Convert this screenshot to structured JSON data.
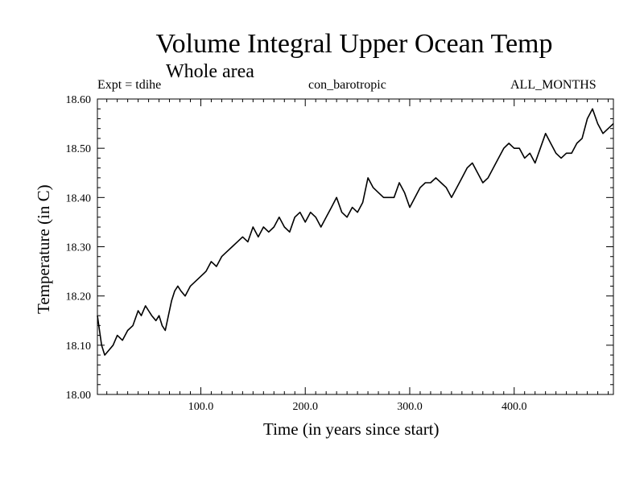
{
  "chart_data": {
    "type": "line",
    "title": "Volume Integral Upper Ocean Temp",
    "subtitle": "Whole area",
    "header_left": "Expt = tdihe",
    "header_center": "con_barotropic",
    "header_right": "ALL_MONTHS",
    "xlabel": "Time (in years since start)",
    "ylabel": "Temperature (in C)",
    "xlim": [
      1,
      495
    ],
    "ylim": [
      18.0,
      18.6
    ],
    "x_ticks": [
      100,
      200,
      300,
      400
    ],
    "x_tick_labels": [
      "100.0",
      "200.0",
      "300.0",
      "400.0"
    ],
    "y_ticks": [
      18.0,
      18.1,
      18.2,
      18.3,
      18.4,
      18.5,
      18.6
    ],
    "y_tick_labels": [
      "18.00",
      "18.10",
      "18.20",
      "18.30",
      "18.40",
      "18.50",
      "18.60"
    ],
    "grid": false,
    "series": [
      {
        "name": "Volume Integral Upper Ocean Temp",
        "color": "#000000",
        "x": [
          1,
          3,
          5,
          8,
          12,
          16,
          20,
          25,
          30,
          35,
          40,
          43,
          47,
          50,
          53,
          57,
          60,
          63,
          66,
          69,
          72,
          75,
          78,
          81,
          85,
          90,
          95,
          100,
          105,
          110,
          115,
          120,
          125,
          130,
          135,
          140,
          145,
          150,
          155,
          160,
          165,
          170,
          175,
          180,
          185,
          190,
          195,
          200,
          205,
          210,
          215,
          220,
          225,
          230,
          235,
          240,
          245,
          250,
          255,
          260,
          265,
          270,
          275,
          280,
          285,
          290,
          295,
          300,
          305,
          310,
          315,
          320,
          325,
          330,
          335,
          340,
          345,
          350,
          355,
          360,
          365,
          370,
          375,
          380,
          385,
          390,
          395,
          400,
          405,
          410,
          415,
          420,
          425,
          430,
          435,
          440,
          445,
          450,
          455,
          460,
          465,
          470,
          475,
          480,
          485,
          490,
          495
        ],
        "values": [
          18.16,
          18.13,
          18.1,
          18.08,
          18.09,
          18.1,
          18.12,
          18.11,
          18.13,
          18.14,
          18.17,
          18.16,
          18.18,
          18.17,
          18.16,
          18.15,
          18.16,
          18.14,
          18.13,
          18.16,
          18.19,
          18.21,
          18.22,
          18.21,
          18.2,
          18.22,
          18.23,
          18.24,
          18.25,
          18.27,
          18.26,
          18.28,
          18.29,
          18.3,
          18.31,
          18.32,
          18.31,
          18.34,
          18.32,
          18.34,
          18.33,
          18.34,
          18.36,
          18.34,
          18.33,
          18.36,
          18.37,
          18.35,
          18.37,
          18.36,
          18.34,
          18.36,
          18.38,
          18.4,
          18.37,
          18.36,
          18.38,
          18.37,
          18.39,
          18.44,
          18.42,
          18.41,
          18.4,
          18.4,
          18.4,
          18.43,
          18.41,
          18.38,
          18.4,
          18.42,
          18.43,
          18.43,
          18.44,
          18.43,
          18.42,
          18.4,
          18.42,
          18.44,
          18.46,
          18.47,
          18.45,
          18.43,
          18.44,
          18.46,
          18.48,
          18.5,
          18.51,
          18.5,
          18.5,
          18.48,
          18.49,
          18.47,
          18.5,
          18.53,
          18.51,
          18.49,
          18.48,
          18.49,
          18.49,
          18.51,
          18.52,
          18.56,
          18.58,
          18.55,
          18.53,
          18.54,
          18.55
        ]
      }
    ]
  }
}
